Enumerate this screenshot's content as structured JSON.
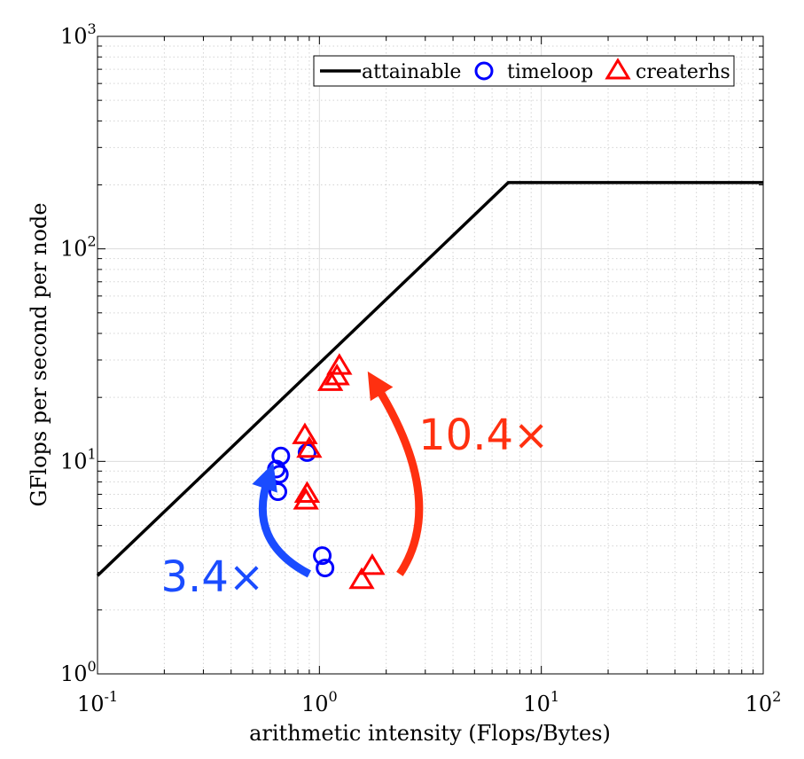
{
  "chart_data": {
    "type": "scatter",
    "xlabel": "arithmetic intensity (Flops/Bytes)",
    "ylabel": "GFlops per second per node",
    "x_scale": "log",
    "y_scale": "log",
    "xlim": [
      0.1,
      100
    ],
    "ylim": [
      1,
      1000
    ],
    "grid": true,
    "x_ticks": [
      {
        "base": "10",
        "exp": "-1",
        "value": 0.1
      },
      {
        "base": "10",
        "exp": "0",
        "value": 1
      },
      {
        "base": "10",
        "exp": "1",
        "value": 10
      },
      {
        "base": "10",
        "exp": "2",
        "value": 100
      }
    ],
    "y_ticks": [
      {
        "base": "10",
        "exp": "0",
        "value": 1
      },
      {
        "base": "10",
        "exp": "1",
        "value": 10
      },
      {
        "base": "10",
        "exp": "2",
        "value": 100
      },
      {
        "base": "10",
        "exp": "3",
        "value": 1000
      }
    ],
    "legend": {
      "position": "top-right",
      "entries": [
        {
          "label": "attainable",
          "marker": "line",
          "color": "#000000"
        },
        {
          "label": "timeloop",
          "marker": "circle",
          "color": "#0000ff"
        },
        {
          "label": "createrhs",
          "marker": "triangle",
          "color": "#ff0000"
        }
      ]
    },
    "series": [
      {
        "name": "attainable",
        "kind": "line",
        "color": "#000000",
        "points": [
          [
            0.1,
            2.9
          ],
          [
            7.1,
            205
          ],
          [
            100,
            205
          ]
        ]
      },
      {
        "name": "timeloop",
        "kind": "circle",
        "color": "#0000ff",
        "points": [
          [
            0.67,
            10.6
          ],
          [
            0.64,
            9.2
          ],
          [
            0.66,
            8.7
          ],
          [
            0.65,
            7.2
          ],
          [
            0.88,
            11.0
          ],
          [
            1.03,
            3.6
          ],
          [
            1.06,
            3.15
          ]
        ]
      },
      {
        "name": "createrhs",
        "kind": "triangle",
        "color": "#ff0000",
        "points": [
          [
            1.23,
            28.0
          ],
          [
            1.2,
            25.0
          ],
          [
            1.12,
            23.5
          ],
          [
            0.86,
            13.2
          ],
          [
            0.9,
            11.4
          ],
          [
            0.88,
            7.0
          ],
          [
            0.87,
            6.5
          ],
          [
            1.73,
            3.2
          ],
          [
            1.55,
            2.75
          ]
        ]
      }
    ],
    "annotations": [
      {
        "text": "3.4×",
        "color": "#1a4cff",
        "x": 0.33,
        "y": 2.9
      },
      {
        "text": "10.4×",
        "color": "#ff3010",
        "x": 5.5,
        "y": 13.5
      }
    ],
    "arrows": [
      {
        "name": "blue-speedup-arrow",
        "color": "#1a4cff",
        "from": [
          0.9,
          2.95
        ],
        "via": [
          0.47,
          4.2
        ],
        "to": [
          0.62,
          9.8
        ]
      },
      {
        "name": "red-speedup-arrow",
        "color": "#ff3010",
        "from": [
          2.3,
          2.95
        ],
        "via": [
          3.8,
          6.5
        ],
        "to": [
          1.65,
          26.5
        ]
      }
    ]
  }
}
